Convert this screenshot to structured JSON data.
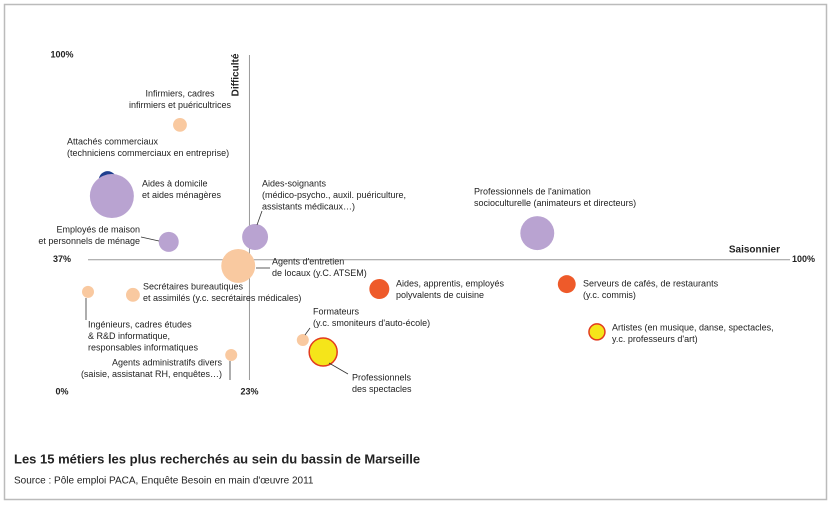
{
  "chart_data": {
    "type": "bubble",
    "title": "Les 15 métiers les plus recherchés au sein du bassin de Marseille",
    "source": "Source : Pôle emploi PACA, Enquête Besoin en main d'œuvre 2011",
    "x_label": "Saisonnier",
    "y_label": "Difficulté",
    "xlim": [
      0,
      100
    ],
    "ylim": [
      0,
      100
    ],
    "xticks": [
      {
        "value": 23,
        "label": "23%"
      },
      {
        "value": 100,
        "label": "100%"
      }
    ],
    "yticks": [
      {
        "value": 0,
        "label": "0%"
      },
      {
        "value": 37,
        "label": "37%"
      },
      {
        "value": 100,
        "label": "100%"
      }
    ],
    "points": [
      {
        "label": [
          "Infirmiers, cadres",
          "infirmiers et puéricultrices"
        ],
        "x": 13.1,
        "y": 78.5,
        "size": 12,
        "color": "#f9c9a0"
      },
      {
        "label": [
          "Attachés commerciaux",
          "(techniciens commerciaux en entreprise)"
        ],
        "x": 2.8,
        "y": 61.5,
        "size": 20,
        "color": "#1f3f8f"
      },
      {
        "label": [
          "Aides à domicile",
          "et aides ménagères"
        ],
        "x": 3.4,
        "y": 56.6,
        "size": 121,
        "color": "#b9a3d1"
      },
      {
        "label": [
          "Employés de maison",
          "et personnels de ménage"
        ],
        "x": 11.5,
        "y": 42.5,
        "size": 25,
        "color": "#b9a3d1"
      },
      {
        "label": [
          "Aides-soignants",
          "(médico-psycho., auxil. puériculture,",
          "assistants médicaux…)"
        ],
        "x": 23.8,
        "y": 44,
        "size": 42,
        "color": "#b9a3d1"
      },
      {
        "label": [
          "Professionnels de l'animation",
          "socioculturelle (animateurs et directeurs)"
        ],
        "x": 64,
        "y": 45.2,
        "size": 72,
        "color": "#b9a3d1"
      },
      {
        "label": [
          "Agents d'entretien",
          "de locaux (y.C. ATSEM)"
        ],
        "x": 21.4,
        "y": 35.1,
        "size": 72,
        "color": "#f9c9a0"
      },
      {
        "label": [
          "Secrétaires bureautiques",
          "et assimilés (y.c. secrétaires médicales)"
        ],
        "x": 6.4,
        "y": 26.2,
        "size": 12,
        "color": "#f9c9a0"
      },
      {
        "label": [
          "Ingénieurs, cadres études",
          "& R&D informatique,",
          "responsables informatiques"
        ],
        "x": 0,
        "y": 27.1,
        "size": 9,
        "color": "#f9c9a0"
      },
      {
        "label": [
          "Aides, apprentis, employés",
          "polyvalents de cuisine"
        ],
        "x": 41.5,
        "y": 28,
        "size": 25,
        "color": "#ee5a2a"
      },
      {
        "label": [
          "Serveurs de cafés, de restaurants",
          "(y.c. commis)"
        ],
        "x": 68.2,
        "y": 29.5,
        "size": 20,
        "color": "#ee5a2a"
      },
      {
        "label": [
          "Artistes (en musique, danse, spectacles,",
          "y.c. professeurs d'art)"
        ],
        "x": 72.5,
        "y": 14.8,
        "size": 16,
        "color": "#f5e51a"
      },
      {
        "label": [
          "Formateurs",
          "(y.c. smoniteurs d'auto-école)"
        ],
        "x": 30.6,
        "y": 12.3,
        "size": 9,
        "color": "#f9c9a0"
      },
      {
        "label": [
          "Professionnels",
          "des spectacles"
        ],
        "x": 33.5,
        "y": 8.6,
        "size": 49,
        "color": "#f5e51a"
      },
      {
        "label": [
          "Agents administratifs divers",
          "(saisie, assistanat RH, enquêtes…)"
        ],
        "x": 20.4,
        "y": 7.7,
        "size": 9,
        "color": "#f9c9a0"
      }
    ]
  }
}
